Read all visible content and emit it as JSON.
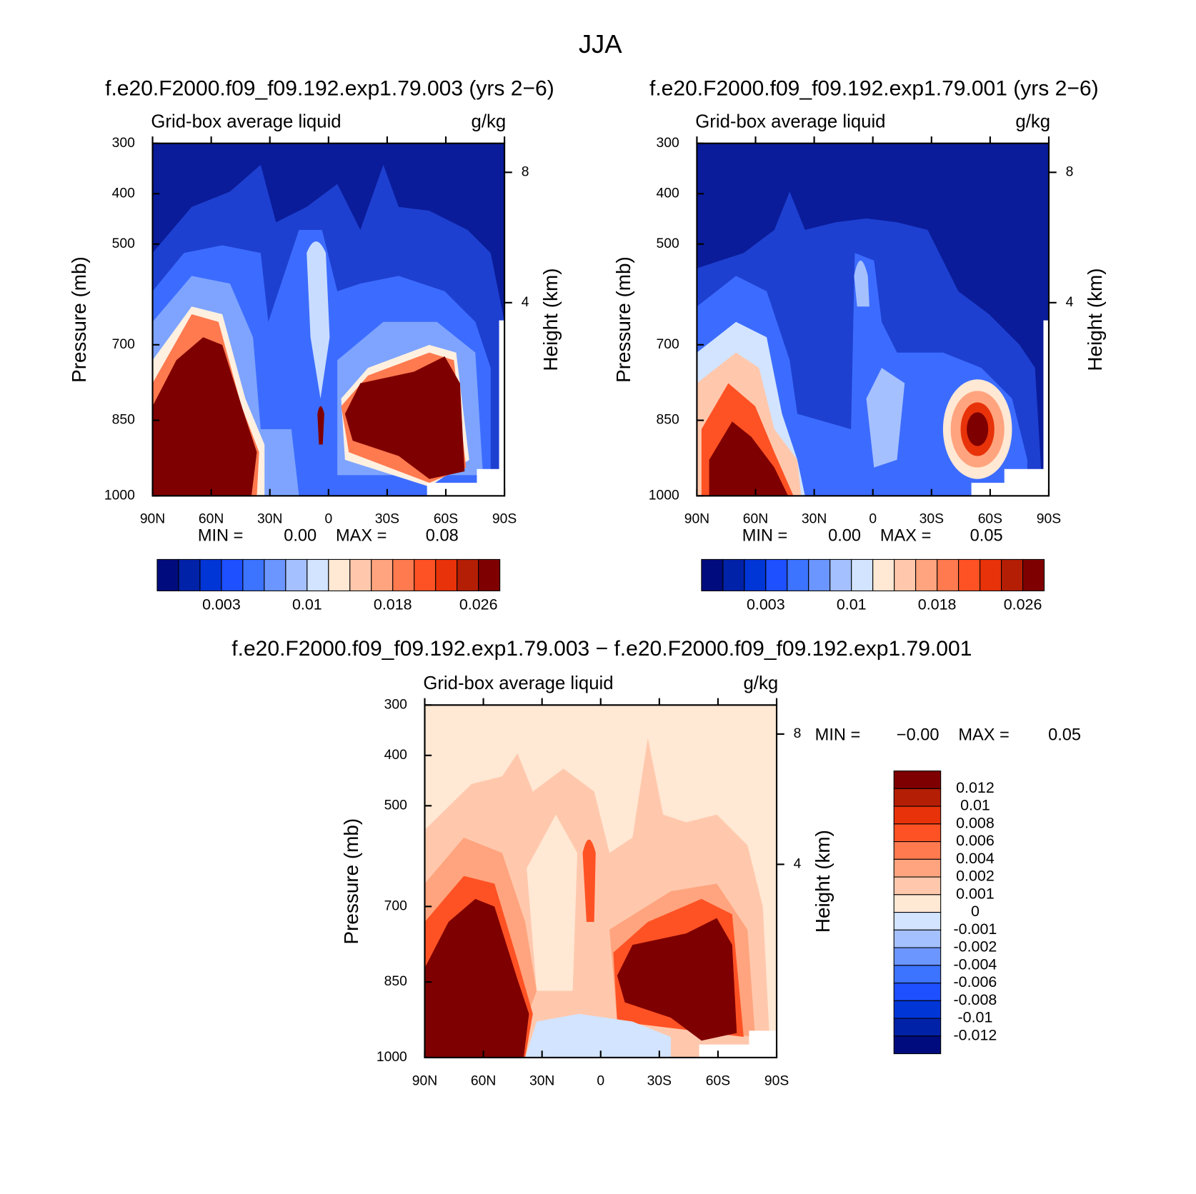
{
  "figure_title": "JJA",
  "chart_data": [
    {
      "type": "contour",
      "title": "f.e20.F2000.f09_f09.192.exp1.79.003 (yrs 2−6)",
      "subtitle": "Grid-box average liquid",
      "units": "g/kg",
      "ylabel": "Pressure (mb)",
      "y2label": "Height (km)",
      "xlim": [
        90,
        -90
      ],
      "xticks": [
        {
          "value": 90,
          "label": "90N"
        },
        {
          "value": 60,
          "label": "60N"
        },
        {
          "value": 30,
          "label": "30N"
        },
        0,
        {
          "value": -30,
          "label": "30S"
        },
        {
          "value": -60,
          "label": "60S"
        },
        {
          "value": -90,
          "label": "90S"
        }
      ],
      "ylim": [
        1000,
        300
      ],
      "yticks": [
        300,
        400,
        500,
        700,
        850,
        1000
      ],
      "y2lim": [
        -1.93,
        8.89
      ],
      "y2ticks": [
        4,
        8
      ],
      "stats": [
        {
          "name": "MIN =",
          "value": 0,
          "label": "0.00"
        },
        {
          "name": "MAX =",
          "value": 0.08,
          "label": "0.08"
        }
      ],
      "colorbar": {
        "orientation": "horizontal",
        "colors": [
          "#000c7d",
          "#0022a8",
          "#0035d6",
          "#1e50ff",
          "#3c73ff",
          "#6c96ff",
          "#a5c0ff",
          "#d2e4ff",
          "#ffe8d4",
          "#ffc8ad",
          "#ffa47e",
          "#ff7a4f",
          "#ff5224",
          "#e83209",
          "#b41e05",
          "#7f0000"
        ],
        "ticks": [
          0.003,
          0.01,
          0.018,
          0.026
        ]
      }
    },
    {
      "type": "contour",
      "title": "f.e20.F2000.f09_f09.192.exp1.79.001 (yrs 2−6)",
      "subtitle": "Grid-box average liquid",
      "units": "g/kg",
      "ylabel": "Pressure (mb)",
      "y2label": "Height (km)",
      "xlim": [
        90,
        -90
      ],
      "xticks": [
        {
          "value": 90,
          "label": "90N"
        },
        {
          "value": 60,
          "label": "60N"
        },
        {
          "value": 30,
          "label": "30N"
        },
        0,
        {
          "value": -30,
          "label": "30S"
        },
        {
          "value": -60,
          "label": "60S"
        },
        {
          "value": -90,
          "label": "90S"
        }
      ],
      "ylim": [
        1000,
        300
      ],
      "yticks": [
        300,
        400,
        500,
        700,
        850,
        1000
      ],
      "y2lim": [
        -1.93,
        8.89
      ],
      "y2ticks": [
        4,
        8
      ],
      "stats": [
        {
          "name": "MIN =",
          "value": 0,
          "label": "0.00"
        },
        {
          "name": "MAX =",
          "value": 0.05,
          "label": "0.05"
        }
      ],
      "colorbar": {
        "orientation": "horizontal",
        "colors": [
          "#000c7d",
          "#0022a8",
          "#0035d6",
          "#1e50ff",
          "#3c73ff",
          "#6c96ff",
          "#a5c0ff",
          "#d2e4ff",
          "#ffe8d4",
          "#ffc8ad",
          "#ffa47e",
          "#ff7a4f",
          "#ff5224",
          "#e83209",
          "#b41e05",
          "#7f0000"
        ],
        "ticks": [
          0.003,
          0.01,
          0.018,
          0.026
        ]
      }
    },
    {
      "type": "contour",
      "title": "f.e20.F2000.f09_f09.192.exp1.79.003 − f.e20.F2000.f09_f09.192.exp1.79.001",
      "subtitle": "Grid-box average liquid",
      "units": "g/kg",
      "ylabel": "Pressure (mb)",
      "y2label": "Height (km)",
      "xlim": [
        90,
        -90
      ],
      "xticks": [
        {
          "value": 90,
          "label": "90N"
        },
        {
          "value": 60,
          "label": "60N"
        },
        {
          "value": 30,
          "label": "30N"
        },
        0,
        {
          "value": -30,
          "label": "30S"
        },
        {
          "value": -60,
          "label": "60S"
        },
        {
          "value": -90,
          "label": "90S"
        }
      ],
      "ylim": [
        1000,
        300
      ],
      "yticks": [
        300,
        400,
        500,
        700,
        850,
        1000
      ],
      "y2lim": [
        -1.93,
        8.89
      ],
      "y2ticks": [
        4,
        8
      ],
      "stats": [
        {
          "name": "MIN =",
          "value": 0,
          "label": "−0.00"
        },
        {
          "name": "MAX =",
          "value": 0.05,
          "label": "0.05"
        }
      ],
      "colorbar": {
        "orientation": "vertical",
        "colors": [
          "#7f0000",
          "#b41e05",
          "#e83209",
          "#ff5224",
          "#ff7a4f",
          "#ffa47e",
          "#ffc8ad",
          "#ffe8d4",
          "#d2e4ff",
          "#a5c0ff",
          "#6c96ff",
          "#3c73ff",
          "#1e50ff",
          "#0035d6",
          "#0022a8",
          "#000c7d"
        ],
        "ticks": [
          0.012,
          0.01,
          0.008,
          0.006,
          0.004,
          0.002,
          0.001,
          0,
          -0.001,
          -0.002,
          -0.004,
          -0.006,
          -0.008,
          -0.01,
          -0.012
        ]
      }
    }
  ]
}
